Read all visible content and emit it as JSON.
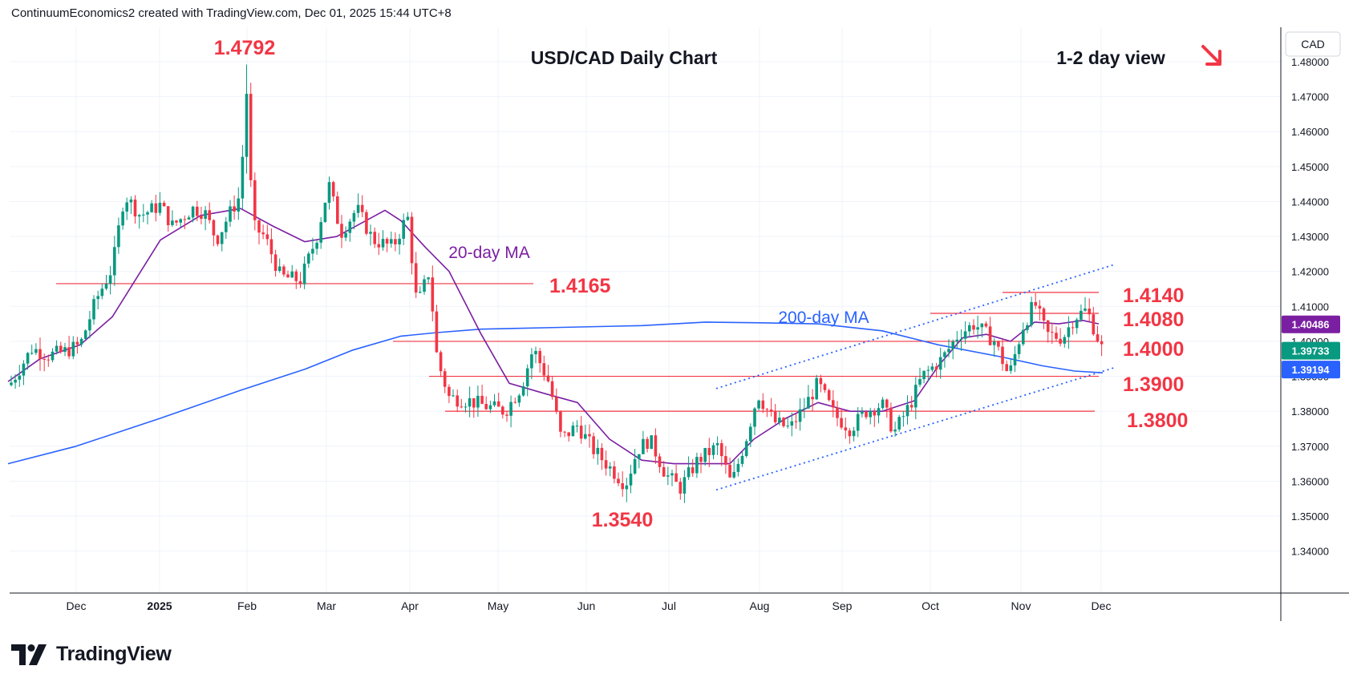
{
  "header": {
    "attribution": "ContinuumEconomics2 created with TradingView.com, Dec 01, 2025 15:44 UTC+8"
  },
  "footer": {
    "brand": "TradingView"
  },
  "chart_data": {
    "type": "candlestick",
    "title": "USD/CAD Daily Chart",
    "view_label": "1-2 day view",
    "currency_label": "CAD",
    "direction": "down",
    "ylim": [
      1.34,
      1.49
    ],
    "y_ticks": [
      "1.48000",
      "1.47000",
      "1.46000",
      "1.45000",
      "1.44000",
      "1.43000",
      "1.42000",
      "1.41000",
      "1.40000",
      "1.39000",
      "1.38000",
      "1.37000",
      "1.36000",
      "1.35000",
      "1.34000"
    ],
    "x_labels": [
      "Dec",
      "2025",
      "Feb",
      "Mar",
      "Apr",
      "May",
      "Jun",
      "Jul",
      "Aug",
      "Sep",
      "Oct",
      "Nov",
      "Dec"
    ],
    "price_badges": [
      {
        "value": "1.40486",
        "color": "#7b1fa2"
      },
      {
        "value": "1.39733",
        "color": "#089981"
      },
      {
        "value": "1.39194",
        "color": "#2962ff"
      }
    ],
    "levels": [
      {
        "label": "1.4165",
        "value": 1.4165,
        "from": 70,
        "to": 665
      },
      {
        "label": "1.4140",
        "value": 1.414,
        "from": 1250,
        "to": 1370
      },
      {
        "label": "1.4080",
        "value": 1.408,
        "from": 1160,
        "to": 1370
      },
      {
        "label": "1.4000",
        "value": 1.4,
        "from": 490,
        "to": 1370
      },
      {
        "label": "1.3900",
        "value": 1.39,
        "from": 535,
        "to": 1370
      },
      {
        "label": "1.3800",
        "value": 1.38,
        "from": 555,
        "to": 1365
      }
    ],
    "annotations": [
      {
        "text": "1.4792",
        "color": "#f23645",
        "x": 305,
        "y": 60
      },
      {
        "text": "1.3540",
        "color": "#f23645",
        "x": 776,
        "y": 649
      },
      {
        "text": "20-day MA",
        "color": "#7b1fa2",
        "x": 610,
        "y": 314
      },
      {
        "text": "200-day MA",
        "color": "#2962ff",
        "x": 1027,
        "y": 395
      }
    ],
    "ma200": [
      [
        10,
        1.365
      ],
      [
        95,
        1.37
      ],
      [
        200,
        1.378
      ],
      [
        300,
        1.386
      ],
      [
        380,
        1.392
      ],
      [
        440,
        1.3975
      ],
      [
        500,
        1.4015
      ],
      [
        545,
        1.4025
      ],
      [
        600,
        1.4035
      ],
      [
        700,
        1.404
      ],
      [
        800,
        1.4045
      ],
      [
        880,
        1.4055
      ],
      [
        950,
        1.4053
      ],
      [
        1020,
        1.405
      ],
      [
        1100,
        1.403
      ],
      [
        1170,
        1.399
      ],
      [
        1250,
        1.3955
      ],
      [
        1300,
        1.393
      ],
      [
        1340,
        1.3915
      ],
      [
        1375,
        1.391
      ]
    ],
    "ma20": [
      [
        10,
        1.3885
      ],
      [
        50,
        1.395
      ],
      [
        100,
        1.399
      ],
      [
        140,
        1.407
      ],
      [
        200,
        1.429
      ],
      [
        250,
        1.436
      ],
      [
        300,
        1.438
      ],
      [
        340,
        1.433
      ],
      [
        380,
        1.4285
      ],
      [
        420,
        1.43
      ],
      [
        460,
        1.435
      ],
      [
        480,
        1.4375
      ],
      [
        500,
        1.4345
      ],
      [
        530,
        1.427
      ],
      [
        560,
        1.42
      ],
      [
        600,
        1.402
      ],
      [
        635,
        1.388
      ],
      [
        680,
        1.385
      ],
      [
        720,
        1.3825
      ],
      [
        760,
        1.372
      ],
      [
        800,
        1.366
      ],
      [
        840,
        1.365
      ],
      [
        880,
        1.365
      ],
      [
        910,
        1.365
      ],
      [
        940,
        1.372
      ],
      [
        980,
        1.378
      ],
      [
        1020,
        1.3825
      ],
      [
        1060,
        1.38
      ],
      [
        1100,
        1.38
      ],
      [
        1140,
        1.383
      ],
      [
        1170,
        1.393
      ],
      [
        1200,
        1.401
      ],
      [
        1230,
        1.402
      ],
      [
        1260,
        1.4
      ],
      [
        1290,
        1.4055
      ],
      [
        1320,
        1.405
      ],
      [
        1350,
        1.406
      ],
      [
        1370,
        1.405
      ]
    ],
    "channel": [
      {
        "from": [
          893,
          1.3575
        ],
        "to": [
          1390,
          1.3925
        ]
      },
      {
        "from": [
          893,
          1.3865
        ],
        "to": [
          1390,
          1.422
        ]
      }
    ],
    "series_path": [
      [
        12,
        1.3875
      ],
      [
        40,
        1.398
      ],
      [
        60,
        1.396
      ],
      [
        80,
        1.397
      ],
      [
        100,
        1.399
      ],
      [
        120,
        1.412
      ],
      [
        140,
        1.421
      ],
      [
        155,
        1.442
      ],
      [
        175,
        1.436
      ],
      [
        200,
        1.439
      ],
      [
        215,
        1.433
      ],
      [
        240,
        1.438
      ],
      [
        255,
        1.437
      ],
      [
        270,
        1.429
      ],
      [
        285,
        1.436
      ],
      [
        300,
        1.442
      ],
      [
        307,
        1.474
      ],
      [
        315,
        1.433
      ],
      [
        330,
        1.43
      ],
      [
        350,
        1.4185
      ],
      [
        375,
        1.4175
      ],
      [
        395,
        1.43
      ],
      [
        410,
        1.445
      ],
      [
        425,
        1.431
      ],
      [
        445,
        1.438
      ],
      [
        465,
        1.429
      ],
      [
        490,
        1.427
      ],
      [
        508,
        1.436
      ],
      [
        520,
        1.41
      ],
      [
        535,
        1.42
      ],
      [
        545,
        1.395
      ],
      [
        560,
        1.384
      ],
      [
        585,
        1.383
      ],
      [
        605,
        1.3815
      ],
      [
        630,
        1.38
      ],
      [
        650,
        1.387
      ],
      [
        665,
        1.398
      ],
      [
        685,
        1.388
      ],
      [
        700,
        1.372
      ],
      [
        720,
        1.376
      ],
      [
        740,
        1.369
      ],
      [
        760,
        1.364
      ],
      [
        780,
        1.359
      ],
      [
        795,
        1.369
      ],
      [
        810,
        1.372
      ],
      [
        830,
        1.362
      ],
      [
        848,
        1.358
      ],
      [
        870,
        1.366
      ],
      [
        895,
        1.37
      ],
      [
        912,
        1.359
      ],
      [
        930,
        1.372
      ],
      [
        945,
        1.385
      ],
      [
        965,
        1.377
      ],
      [
        985,
        1.375
      ],
      [
        1005,
        1.382
      ],
      [
        1020,
        1.388
      ],
      [
        1040,
        1.379
      ],
      [
        1060,
        1.375
      ],
      [
        1080,
        1.38
      ],
      [
        1100,
        1.382
      ],
      [
        1115,
        1.374
      ],
      [
        1135,
        1.382
      ],
      [
        1150,
        1.39
      ],
      [
        1175,
        1.395
      ],
      [
        1195,
        1.402
      ],
      [
        1215,
        1.405
      ],
      [
        1240,
        1.4
      ],
      [
        1258,
        1.39
      ],
      [
        1275,
        1.404
      ],
      [
        1290,
        1.411
      ],
      [
        1305,
        1.402
      ],
      [
        1325,
        1.401
      ],
      [
        1340,
        1.407
      ],
      [
        1355,
        1.409
      ],
      [
        1375,
        1.3973
      ]
    ],
    "extremes": [
      {
        "x": 307,
        "high": 1.4792,
        "low": 1.448
      },
      {
        "x": 779,
        "high": 1.361,
        "low": 1.354
      }
    ]
  }
}
